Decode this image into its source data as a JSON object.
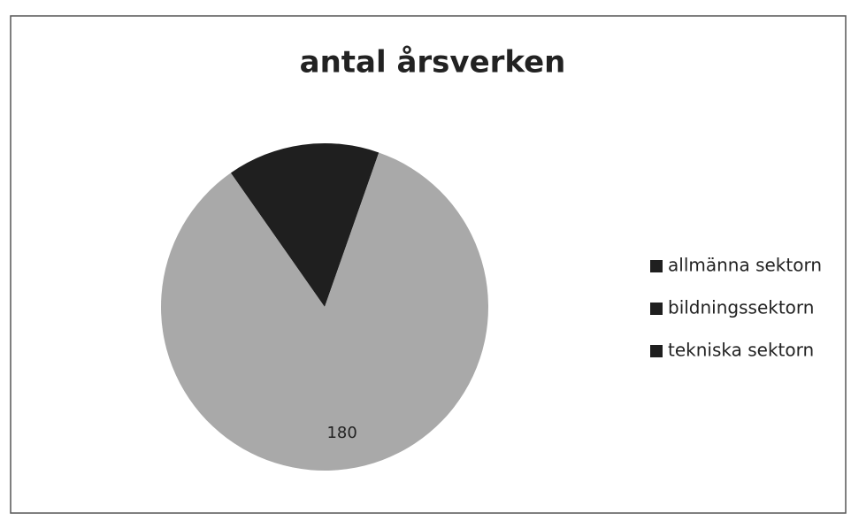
{
  "chart_data": {
    "type": "pie",
    "title": "antal årsverken",
    "categories": [
      "allmänna sektorn",
      "bildningssektorn",
      "tekniska sektorn"
    ],
    "values": [
      32,
      180,
      0
    ],
    "colors": [
      "#1f1f1f",
      "#a9a9a9",
      "#3a3a3a"
    ],
    "labeled": [
      false,
      true,
      false
    ],
    "legend_marker_color": "#1f1f1f",
    "legend": "right"
  }
}
